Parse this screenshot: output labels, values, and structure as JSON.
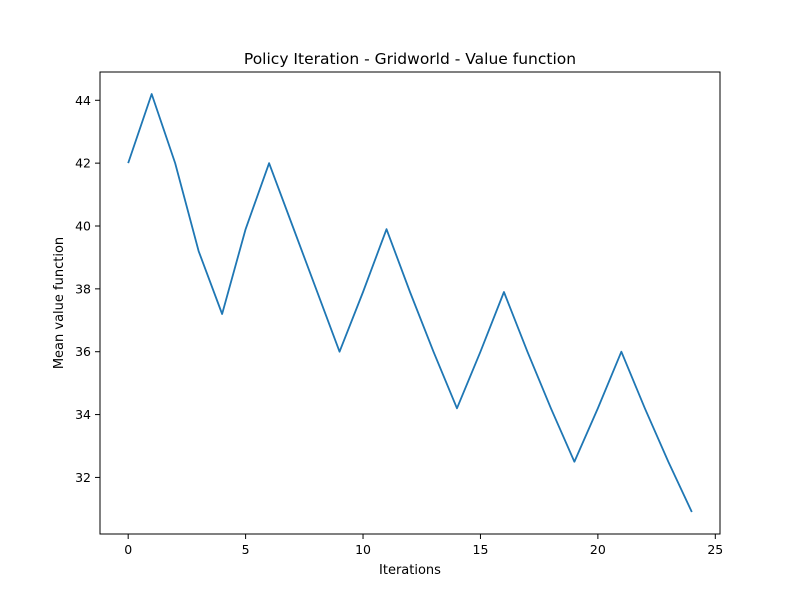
{
  "chart_data": {
    "type": "line",
    "title": "Policy Iteration - Gridworld - Value function",
    "xlabel": "Iterations",
    "ylabel": "Mean value function",
    "xlim": [
      -1.2,
      25.2
    ],
    "ylim": [
      30.2,
      44.9
    ],
    "xticks": [
      0,
      5,
      10,
      15,
      20,
      25
    ],
    "yticks": [
      32,
      34,
      36,
      38,
      40,
      42,
      44
    ],
    "grid": false,
    "series": [
      {
        "color": "#1f77b4",
        "x": [
          0,
          1,
          2,
          3,
          4,
          5,
          6,
          7,
          8,
          9,
          10,
          11,
          12,
          13,
          14,
          15,
          16,
          17,
          18,
          19,
          20,
          21,
          22,
          23,
          24
        ],
        "y": [
          42.0,
          44.2,
          42.0,
          39.2,
          37.2,
          39.9,
          42.0,
          40.0,
          38.0,
          36.0,
          37.9,
          39.9,
          37.9,
          36.0,
          34.2,
          36.0,
          37.9,
          36.0,
          34.2,
          32.5,
          34.2,
          36.0,
          34.2,
          32.5,
          30.9
        ]
      }
    ]
  }
}
